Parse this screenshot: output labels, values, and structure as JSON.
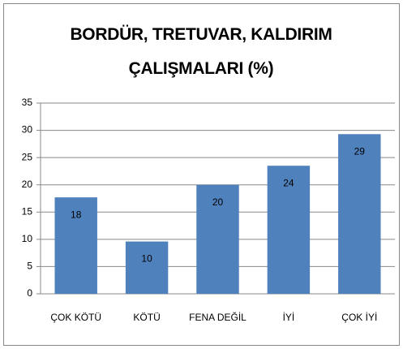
{
  "chart_data": {
    "type": "bar",
    "title": "BORDÜR, TRETUVAR, KALDIRIM ÇALIŞMALARI (%)",
    "categories": [
      "ÇOK KÖTÜ",
      "KÖTÜ",
      "FENA DEĞİL",
      "İYİ",
      "ÇOK İYİ"
    ],
    "values": [
      17.7,
      9.6,
      20,
      23.5,
      29.3
    ],
    "value_labels": [
      "18",
      "10",
      "20",
      "24",
      "29"
    ],
    "color": "#4f81bd",
    "ylim": [
      0,
      35
    ],
    "yticks": [
      0,
      5,
      10,
      15,
      20,
      25,
      30,
      35
    ],
    "grid": true
  }
}
